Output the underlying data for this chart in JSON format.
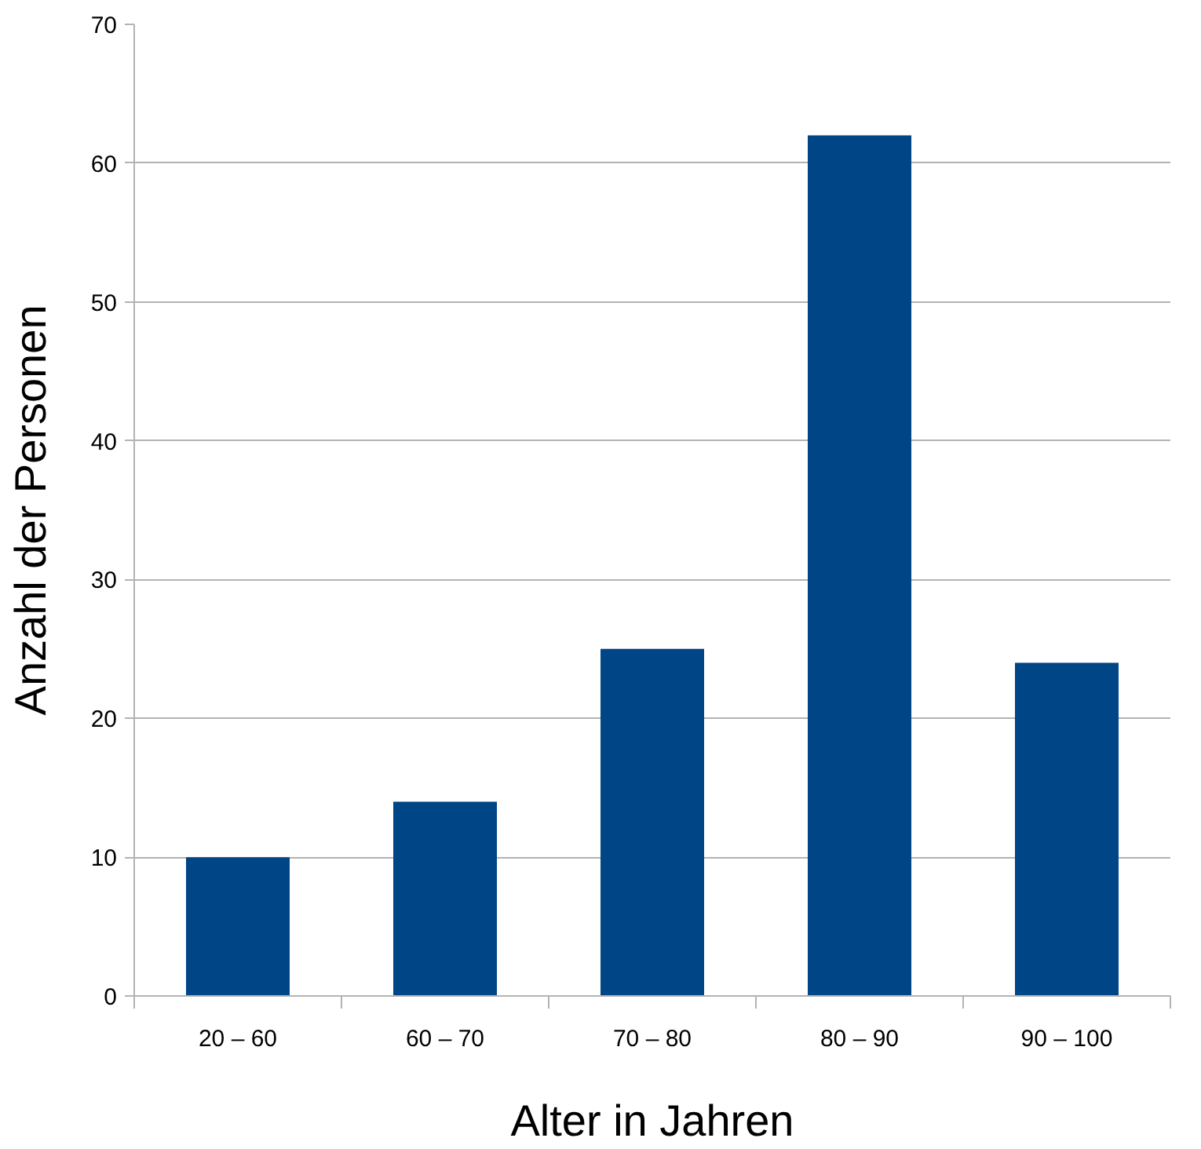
{
  "chart_data": {
    "type": "bar",
    "xlabel": "Alter in Jahren",
    "ylabel": "Anzahl der Personen",
    "categories": [
      "20 – 60",
      "60 – 70",
      "70 – 80",
      "80 – 90",
      "90 – 100"
    ],
    "values": [
      10,
      14,
      25,
      62,
      24
    ],
    "color": "#004586",
    "ylim": [
      0,
      70
    ],
    "yticks": [
      0,
      10,
      20,
      30,
      40,
      50,
      60,
      70
    ],
    "grid": "y"
  }
}
